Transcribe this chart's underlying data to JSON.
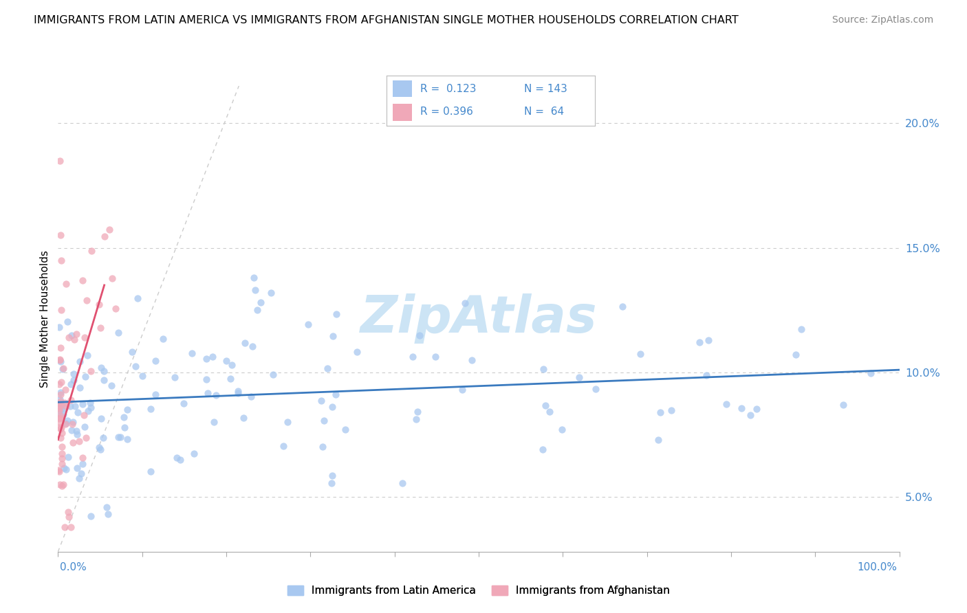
{
  "title": "IMMIGRANTS FROM LATIN AMERICA VS IMMIGRANTS FROM AFGHANISTAN SINGLE MOTHER HOUSEHOLDS CORRELATION CHART",
  "source": "Source: ZipAtlas.com",
  "ylabel": "Single Mother Households",
  "yticks": [
    0.05,
    0.1,
    0.15,
    0.2
  ],
  "ytick_labels": [
    "5.0%",
    "10.0%",
    "15.0%",
    "20.0%"
  ],
  "xlim": [
    0.0,
    1.0
  ],
  "ylim": [
    0.028,
    0.215
  ],
  "color_blue_dot": "#a8c8f0",
  "color_pink_dot": "#f0a8b8",
  "color_blue_line": "#3a7abf",
  "color_pink_line": "#e05070",
  "color_tick_label": "#4488cc",
  "watermark_color": "#cce4f5",
  "watermark_text": "ZipAtlas",
  "legend_label1": "Immigrants from Latin America",
  "legend_label2": "Immigrants from Afghanistan",
  "top_legend_r1": "R =  0.123",
  "top_legend_n1": "N = 143",
  "top_legend_r2": "R = 0.396",
  "top_legend_n2": "N =  64",
  "blue_line_x": [
    0.0,
    1.0
  ],
  "blue_line_y": [
    0.088,
    0.101
  ],
  "pink_line_x": [
    0.0,
    0.055
  ],
  "pink_line_y": [
    0.073,
    0.135
  ],
  "ref_line_x": [
    0.0,
    0.215
  ],
  "ref_line_y": [
    0.028,
    0.215
  ]
}
